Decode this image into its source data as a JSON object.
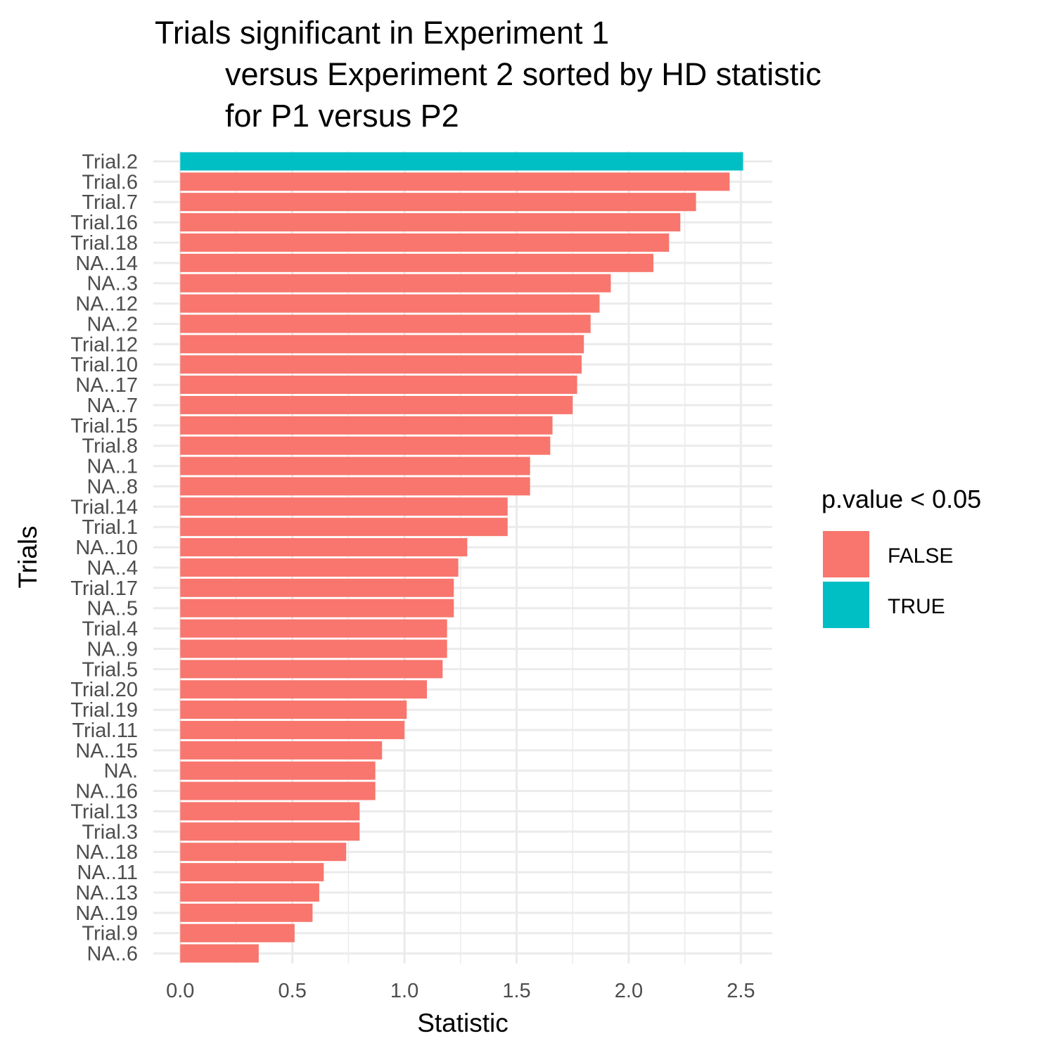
{
  "chart_data": {
    "type": "bar",
    "orientation": "horizontal",
    "title_lines": [
      "Trials significant in Experiment 1",
      "versus Experiment 2 sorted by HD statistic",
      "for P1 versus P2"
    ],
    "xlabel": "Statistic",
    "ylabel": "Trials",
    "xlim": [
      -0.12,
      2.64
    ],
    "x_ticks": [
      0.0,
      0.5,
      1.0,
      1.5,
      2.0,
      2.5
    ],
    "x_tick_labels": [
      "0.0",
      "0.5",
      "1.0",
      "1.5",
      "2.0",
      "2.5"
    ],
    "grid": true,
    "legend": {
      "title": "p.value < 0.05",
      "position": "right",
      "entries": [
        {
          "label": "FALSE",
          "color": "#F8766D"
        },
        {
          "label": "TRUE",
          "color": "#00BFC4"
        }
      ]
    },
    "categories": [
      "Trial.2",
      "Trial.6",
      "Trial.7",
      "Trial.16",
      "Trial.18",
      "NA..14",
      "NA..3",
      "NA..12",
      "NA..2",
      "Trial.12",
      "Trial.10",
      "NA..17",
      "NA..7",
      "Trial.15",
      "Trial.8",
      "NA..1",
      "NA..8",
      "Trial.14",
      "Trial.1",
      "NA..10",
      "NA..4",
      "Trial.17",
      "NA..5",
      "Trial.4",
      "NA..9",
      "Trial.5",
      "Trial.20",
      "Trial.19",
      "Trial.11",
      "NA..15",
      "NA.",
      "NA..16",
      "Trial.13",
      "Trial.3",
      "NA..18",
      "NA..11",
      "NA..13",
      "NA..19",
      "Trial.9",
      "NA..6"
    ],
    "values": [
      2.51,
      2.45,
      2.3,
      2.23,
      2.18,
      2.11,
      1.92,
      1.87,
      1.83,
      1.8,
      1.79,
      1.77,
      1.75,
      1.66,
      1.65,
      1.56,
      1.56,
      1.46,
      1.46,
      1.28,
      1.24,
      1.22,
      1.22,
      1.19,
      1.19,
      1.17,
      1.1,
      1.01,
      1.0,
      0.9,
      0.87,
      0.87,
      0.8,
      0.8,
      0.74,
      0.64,
      0.62,
      0.59,
      0.51,
      0.35
    ],
    "significant": [
      true,
      false,
      false,
      false,
      false,
      false,
      false,
      false,
      false,
      false,
      false,
      false,
      false,
      false,
      false,
      false,
      false,
      false,
      false,
      false,
      false,
      false,
      false,
      false,
      false,
      false,
      false,
      false,
      false,
      false,
      false,
      false,
      false,
      false,
      false,
      false,
      false,
      false,
      false,
      false
    ]
  }
}
